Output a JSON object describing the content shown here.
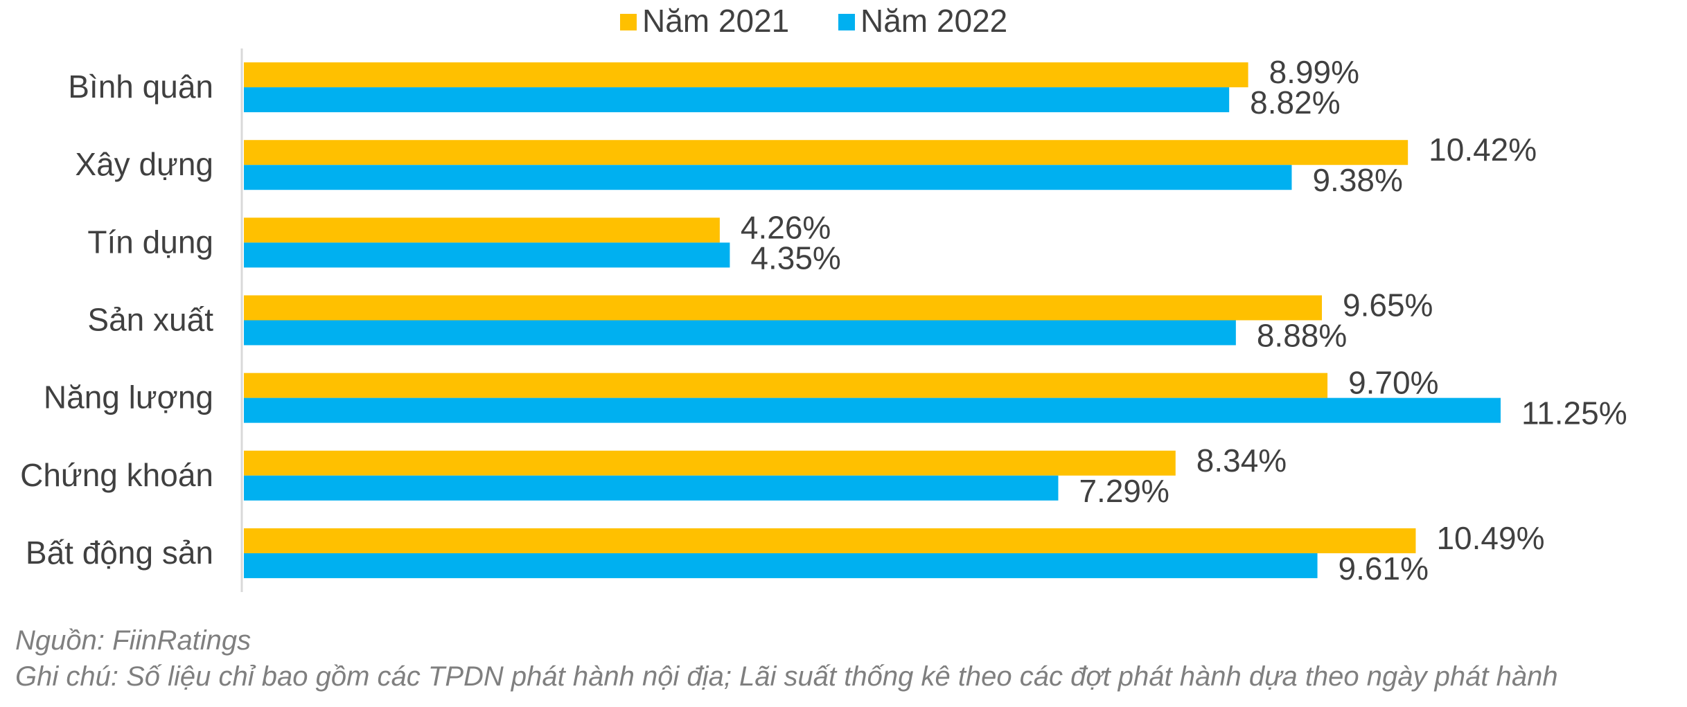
{
  "chart_data": {
    "type": "bar",
    "orientation": "horizontal",
    "categories": [
      "Bình quân",
      "Xây dựng",
      "Tín dụng",
      "Sản xuất",
      "Năng lượng",
      "Chứng khoán",
      "Bất động sản"
    ],
    "series": [
      {
        "name": "Năm 2021",
        "color": "#FFC000",
        "values": [
          8.99,
          10.42,
          4.26,
          9.65,
          9.7,
          8.34,
          10.49
        ],
        "labels": [
          "8.99%",
          "10.42%",
          "4.26%",
          "9.65%",
          "9.70%",
          "8.34%",
          "10.49%"
        ]
      },
      {
        "name": "Năm 2022",
        "color": "#00B0F0",
        "values": [
          8.82,
          9.38,
          4.35,
          8.88,
          11.25,
          7.29,
          9.61
        ],
        "labels": [
          "8.82%",
          "9.38%",
          "4.35%",
          "8.88%",
          "11.25%",
          "7.29%",
          "9.61%"
        ]
      }
    ],
    "xlim": [
      0,
      11.25
    ],
    "legend_position": "top-center",
    "grid": false
  },
  "notes": {
    "source": "Nguồn: FiinRatings",
    "footnote": "Ghi chú: Số liệu chỉ bao gồm các TPDN phát hành nội địa; Lãi suất thống kê theo các đợt phát hành dựa theo ngày phát hành"
  }
}
